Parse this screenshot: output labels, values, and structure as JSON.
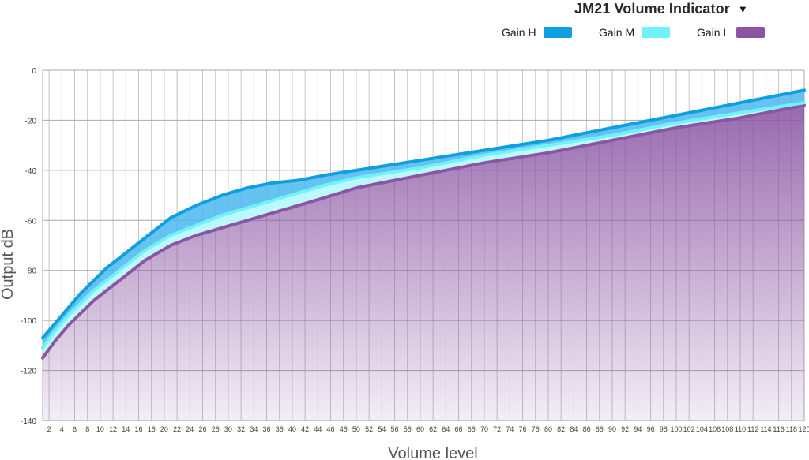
{
  "header": {
    "title": "JM21 Volume Indicator",
    "dropdown_icon": "triangle-down-icon"
  },
  "legend": [
    {
      "label": "Gain H",
      "color": "#0d9fe0"
    },
    {
      "label": "Gain M",
      "color": "#6ff3f8"
    },
    {
      "label": "Gain L",
      "color": "#8a55a3"
    }
  ],
  "chart_data": {
    "type": "area",
    "title": "JM21 Volume Indicator",
    "xlabel": "Volume level",
    "ylabel": "Output dB",
    "xlim": [
      1,
      120
    ],
    "ylim": [
      -140,
      0
    ],
    "grid": true,
    "legend_position": "top-right",
    "x_ticks": [
      2,
      4,
      6,
      8,
      10,
      12,
      14,
      16,
      18,
      20,
      22,
      24,
      26,
      28,
      30,
      32,
      34,
      36,
      38,
      40,
      42,
      44,
      46,
      48,
      50,
      52,
      54,
      56,
      58,
      60,
      62,
      64,
      66,
      68,
      70,
      72,
      74,
      76,
      78,
      80,
      82,
      84,
      86,
      88,
      90,
      92,
      94,
      96,
      98,
      100,
      102,
      104,
      106,
      108,
      110,
      112,
      114,
      116,
      118,
      120
    ],
    "y_ticks": [
      0,
      -20,
      -40,
      -60,
      -80,
      -100,
      -120,
      -140
    ],
    "series": [
      {
        "name": "Gain H",
        "color": "#0d9fe0",
        "x": [
          1,
          3,
          5,
          7,
          9,
          11,
          13,
          15,
          17,
          19,
          21,
          25,
          29,
          33,
          37,
          41,
          45,
          50,
          60,
          70,
          80,
          90,
          100,
          110,
          120
        ],
        "y": [
          -107,
          -101,
          -95,
          -89,
          -84,
          -79,
          -75,
          -71,
          -67,
          -63,
          -59,
          -54,
          -50,
          -47,
          -45,
          -44,
          -42,
          -40,
          -36,
          -32,
          -28,
          -23,
          -18,
          -13,
          -8
        ]
      },
      {
        "name": "Gain M",
        "color": "#6ff3f8",
        "x": [
          1,
          3,
          5,
          7,
          9,
          11,
          13,
          15,
          17,
          19,
          21,
          25,
          29,
          33,
          37,
          41,
          45,
          50,
          60,
          70,
          80,
          90,
          100,
          110,
          120
        ],
        "y": [
          -111,
          -104,
          -98,
          -93,
          -88,
          -84,
          -80,
          -76,
          -72,
          -69,
          -66,
          -62,
          -58,
          -55,
          -52,
          -49,
          -46,
          -43,
          -39,
          -34,
          -30,
          -26,
          -21,
          -17,
          -13
        ]
      },
      {
        "name": "Gain L",
        "color": "#8a55a3",
        "x": [
          1,
          3,
          5,
          7,
          9,
          11,
          13,
          15,
          17,
          19,
          21,
          25,
          29,
          33,
          37,
          41,
          45,
          50,
          60,
          70,
          80,
          90,
          100,
          110,
          120
        ],
        "y": [
          -115,
          -108,
          -102,
          -97,
          -92,
          -88,
          -84,
          -80,
          -76,
          -73,
          -70,
          -66,
          -63,
          -60,
          -57,
          -54,
          -51,
          -47,
          -42,
          -37,
          -33,
          -28,
          -23,
          -19,
          -14
        ]
      }
    ]
  }
}
